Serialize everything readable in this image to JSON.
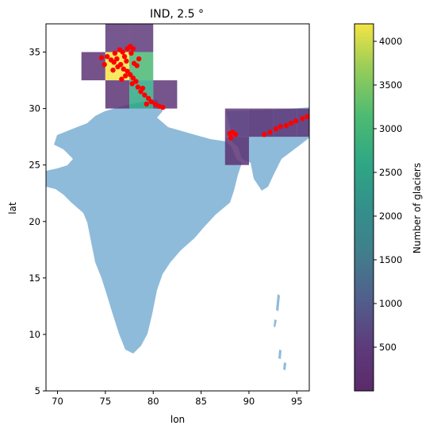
{
  "chart_data": {
    "type": "heatmap",
    "title": "IND, 2.5 °",
    "xlabel": "lon",
    "ylabel": "lat",
    "xlim": [
      68.8,
      96.3
    ],
    "ylim": [
      5.0,
      37.5
    ],
    "xticks": [
      70,
      75,
      80,
      85,
      90,
      95
    ],
    "yticks": [
      5,
      10,
      15,
      20,
      25,
      30,
      35
    ],
    "grid": false,
    "colorbar": {
      "label": "Number of glaciers",
      "min": 0,
      "max": 4200,
      "ticks": [
        500,
        1000,
        1500,
        2000,
        2500,
        3000,
        3500,
        4000
      ],
      "colormap": "viridis"
    },
    "country_color": "#8fbbda",
    "glacier_point_color": "#ff0000",
    "cells": [
      {
        "lon0": 75.0,
        "lat0": 35.0,
        "lon1": 77.5,
        "lat1": 37.5,
        "value": 450
      },
      {
        "lon0": 77.5,
        "lat0": 35.0,
        "lon1": 80.0,
        "lat1": 37.5,
        "value": 450
      },
      {
        "lon0": 72.5,
        "lat0": 32.5,
        "lon1": 75.0,
        "lat1": 35.0,
        "value": 300
      },
      {
        "lon0": 75.0,
        "lat0": 32.5,
        "lon1": 77.5,
        "lat1": 35.0,
        "value": 4200
      },
      {
        "lon0": 77.5,
        "lat0": 32.5,
        "lon1": 80.0,
        "lat1": 35.0,
        "value": 3100
      },
      {
        "lon0": 75.0,
        "lat0": 30.0,
        "lon1": 77.5,
        "lat1": 32.5,
        "value": 250
      },
      {
        "lon0": 77.5,
        "lat0": 30.0,
        "lon1": 80.0,
        "lat1": 32.5,
        "value": 2600
      },
      {
        "lon0": 80.0,
        "lat0": 30.0,
        "lon1": 82.5,
        "lat1": 32.5,
        "value": 400
      },
      {
        "lon0": 87.5,
        "lat0": 27.5,
        "lon1": 90.0,
        "lat1": 30.0,
        "value": 450
      },
      {
        "lon0": 90.0,
        "lat0": 27.5,
        "lon1": 92.5,
        "lat1": 30.0,
        "value": 300
      },
      {
        "lon0": 92.5,
        "lat0": 27.5,
        "lon1": 95.0,
        "lat1": 30.0,
        "value": 350
      },
      {
        "lon0": 95.0,
        "lat0": 27.5,
        "lon1": 97.5,
        "lat1": 30.0,
        "value": 350
      },
      {
        "lon0": 87.5,
        "lat0": 25.0,
        "lon1": 90.0,
        "lat1": 27.5,
        "value": 250
      }
    ],
    "glacier_points": [
      [
        75.2,
        34.6
      ],
      [
        75.6,
        34.3
      ],
      [
        75.9,
        34.1
      ],
      [
        76.2,
        34.4
      ],
      [
        76.0,
        34.9
      ],
      [
        76.5,
        35.2
      ],
      [
        76.8,
        35.0
      ],
      [
        77.0,
        34.6
      ],
      [
        77.3,
        35.3
      ],
      [
        77.6,
        35.5
      ],
      [
        77.9,
        35.3
      ],
      [
        77.7,
        34.9
      ],
      [
        77.2,
        34.2
      ],
      [
        76.6,
        33.9
      ],
      [
        76.9,
        33.5
      ],
      [
        77.3,
        33.3
      ],
      [
        77.6,
        33.0
      ],
      [
        77.9,
        32.7
      ],
      [
        78.2,
        32.4
      ],
      [
        77.8,
        32.2
      ],
      [
        78.4,
        31.9
      ],
      [
        78.7,
        31.5
      ],
      [
        79.1,
        31.2
      ],
      [
        79.5,
        30.9
      ],
      [
        79.8,
        30.6
      ],
      [
        80.2,
        30.4
      ],
      [
        80.6,
        30.2
      ],
      [
        81.0,
        30.1
      ],
      [
        78.3,
        33.8
      ],
      [
        78.5,
        34.4
      ],
      [
        78.0,
        34.0
      ],
      [
        76.3,
        33.7
      ],
      [
        75.8,
        33.4
      ],
      [
        74.6,
        34.5
      ],
      [
        74.9,
        33.9
      ],
      [
        77.1,
        32.9
      ],
      [
        76.7,
        32.6
      ],
      [
        78.9,
        31.8
      ],
      [
        79.3,
        30.4
      ],
      [
        88.0,
        27.8
      ],
      [
        88.3,
        27.9
      ],
      [
        88.1,
        27.4
      ],
      [
        88.6,
        27.7
      ],
      [
        91.6,
        27.7
      ],
      [
        92.2,
        27.9
      ],
      [
        92.8,
        28.2
      ],
      [
        93.3,
        28.4
      ],
      [
        93.9,
        28.5
      ],
      [
        94.4,
        28.7
      ],
      [
        94.9,
        28.9
      ],
      [
        95.6,
        29.1
      ],
      [
        96.1,
        29.3
      ]
    ]
  }
}
